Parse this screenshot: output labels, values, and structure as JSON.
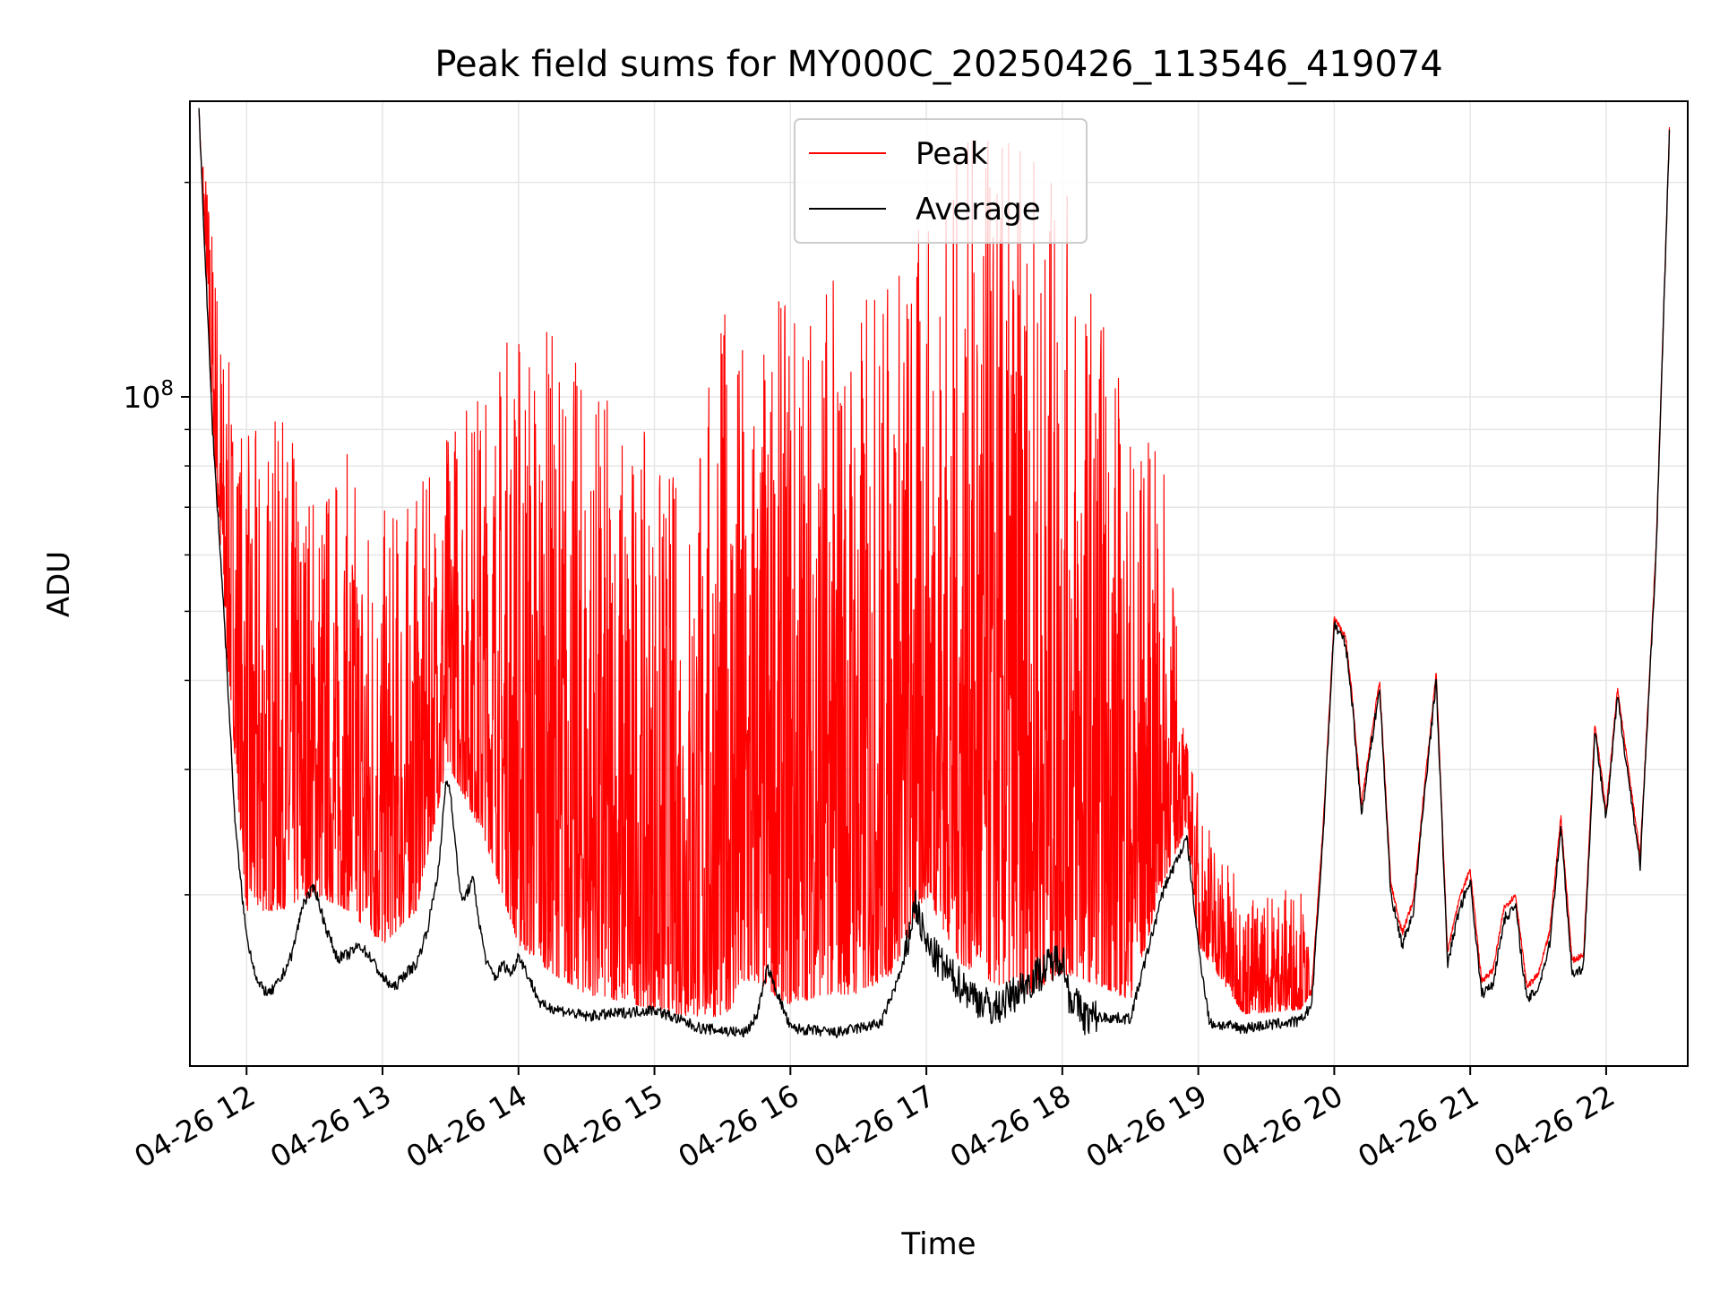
{
  "chart_data": {
    "type": "line",
    "title": "Peak field sums for MY000C_20250426_113546_419074",
    "xlabel": "Time",
    "ylabel": "ADU",
    "yscale": "log",
    "xlim": [
      "2025-04-26 11:35",
      "2025-04-26 22:36"
    ],
    "ylim": [
      11500000,
      260000000
    ],
    "x_tick_labels": [
      "04-26 12",
      "04-26 13",
      "04-26 14",
      "04-26 15",
      "04-26 16",
      "04-26 17",
      "04-26 18",
      "04-26 19",
      "04-26 20",
      "04-26 21",
      "04-26 22"
    ],
    "x_tick_times": [
      "2025-04-26 12:00",
      "2025-04-26 13:00",
      "2025-04-26 14:00",
      "2025-04-26 15:00",
      "2025-04-26 16:00",
      "2025-04-26 17:00",
      "2025-04-26 18:00",
      "2025-04-26 19:00",
      "2025-04-26 20:00",
      "2025-04-26 21:00",
      "2025-04-26 22:00"
    ],
    "y_tick_label": "10^8",
    "y_tick_value": 100000000,
    "grid": true,
    "legend_position": "top-center",
    "series": [
      {
        "name": "Average",
        "color": "#000000",
        "x": [
          "11:39",
          "11:45",
          "11:50",
          "11:55",
          "11:58",
          "12:00",
          "12:05",
          "12:10",
          "12:15",
          "12:20",
          "12:25",
          "12:30",
          "12:35",
          "12:40",
          "12:45",
          "12:50",
          "12:55",
          "13:00",
          "13:05",
          "13:10",
          "13:15",
          "13:20",
          "13:25",
          "13:28",
          "13:30",
          "13:33",
          "13:35",
          "13:40",
          "13:43",
          "13:46",
          "13:50",
          "13:53",
          "13:57",
          "14:00",
          "14:10",
          "14:30",
          "15:00",
          "15:20",
          "15:40",
          "15:45",
          "15:50",
          "16:00",
          "16:20",
          "16:40",
          "16:50",
          "16:55",
          "17:00",
          "17:10",
          "17:20",
          "17:30",
          "18:00",
          "18:03",
          "18:10",
          "18:30",
          "18:45",
          "18:55",
          "19:00",
          "19:05",
          "19:20",
          "19:45",
          "19:50",
          "19:55",
          "20:00",
          "20:05",
          "20:08",
          "20:12",
          "20:16",
          "20:20",
          "20:25",
          "20:30",
          "20:35",
          "20:40",
          "20:45",
          "20:50",
          "20:55",
          "21:00",
          "21:05",
          "21:10",
          "21:15",
          "21:20",
          "21:25",
          "21:30",
          "21:35",
          "21:40",
          "21:45",
          "21:50",
          "21:55",
          "22:00",
          "22:05",
          "22:15",
          "22:22",
          "22:28"
        ],
        "y": [
          250000000,
          90000000,
          50000000,
          25000000,
          20000000,
          17500000,
          15000000,
          14500000,
          15200000,
          16500000,
          19500000,
          20500000,
          18000000,
          16300000,
          16500000,
          17000000,
          16300000,
          15300000,
          14800000,
          15500000,
          16000000,
          18000000,
          22000000,
          29000000,
          28000000,
          22000000,
          19500000,
          21000000,
          18000000,
          16000000,
          15300000,
          16000000,
          15500000,
          16500000,
          14000000,
          13500000,
          13800000,
          13000000,
          12800000,
          13500000,
          15800000,
          13000000,
          12800000,
          13200000,
          16000000,
          19500000,
          17000000,
          15500000,
          14500000,
          13800000,
          16500000,
          14500000,
          13500000,
          13400000,
          20500000,
          24000000,
          17000000,
          13200000,
          13000000,
          13300000,
          14000000,
          24000000,
          48000000,
          45000000,
          37000000,
          26000000,
          32000000,
          39000000,
          20000000,
          17000000,
          19000000,
          28000000,
          40000000,
          16000000,
          19000000,
          21000000,
          14500000,
          15000000,
          18500000,
          19300000,
          14200000,
          14800000,
          17000000,
          25000000,
          15500000,
          15800000,
          34000000,
          25500000,
          38000000,
          22000000,
          60000000,
          240000000
        ]
      },
      {
        "name": "Peak",
        "color": "#ff0000",
        "x": [
          "11:39",
          "11:45",
          "11:50",
          "12:00",
          "12:15",
          "12:30",
          "12:45",
          "13:00",
          "13:15",
          "13:25",
          "13:30",
          "13:45",
          "14:00",
          "14:15",
          "14:30",
          "14:45",
          "15:00",
          "15:15",
          "15:30",
          "15:45",
          "16:00",
          "16:15",
          "16:30",
          "16:45",
          "17:00",
          "17:15",
          "17:30",
          "17:45",
          "18:00",
          "18:15",
          "18:30",
          "18:45",
          "18:55",
          "19:00",
          "19:20",
          "19:45",
          "19:50",
          "19:55",
          "20:00",
          "20:05",
          "20:08",
          "20:12",
          "20:16",
          "20:20",
          "20:25",
          "20:30",
          "20:35",
          "20:40",
          "20:45",
          "20:50",
          "20:55",
          "21:00",
          "21:05",
          "21:10",
          "21:15",
          "21:20",
          "21:25",
          "21:30",
          "21:35",
          "21:40",
          "21:45",
          "21:50",
          "21:55",
          "22:00",
          "22:05",
          "22:15",
          "22:22",
          "22:28"
        ],
        "y_low": [
          250000000,
          90000000,
          50000000,
          19000000,
          19000000,
          20000000,
          19000000,
          17000000,
          19000000,
          27000000,
          30000000,
          24000000,
          17000000,
          15500000,
          14500000,
          14200000,
          13800000,
          13500000,
          13500000,
          15000000,
          14000000,
          14500000,
          14500000,
          15500000,
          20000000,
          16000000,
          15000000,
          14500000,
          15500000,
          15000000,
          14200000,
          21000000,
          25000000,
          17000000,
          13600000,
          13800000,
          14500000,
          24500000,
          48500000,
          45500000,
          37500000,
          26500000,
          32500000,
          39500000,
          20500000,
          17500000,
          19500000,
          28500000,
          40500000,
          16500000,
          19500000,
          21500000,
          15000000,
          15500000,
          19000000,
          19800000,
          14700000,
          15300000,
          17500000,
          25500000,
          16000000,
          16300000,
          34500000,
          26000000,
          38500000,
          22500000,
          60500000,
          240000000
        ],
        "y_high": [
          250000000,
          180000000,
          120000000,
          90000000,
          95000000,
          80000000,
          85000000,
          70000000,
          75000000,
          80000000,
          100000000,
          110000000,
          140000000,
          130000000,
          110000000,
          100000000,
          85000000,
          80000000,
          140000000,
          120000000,
          150000000,
          160000000,
          140000000,
          170000000,
          180000000,
          230000000,
          240000000,
          230000000,
          200000000,
          150000000,
          100000000,
          80000000,
          33000000,
          28000000,
          20000000,
          21000000,
          15500000,
          25500000,
          49000000,
          46000000,
          38000000,
          27000000,
          33000000,
          40000000,
          21000000,
          18000000,
          20000000,
          29000000,
          41000000,
          17000000,
          20000000,
          22000000,
          15500000,
          16000000,
          19500000,
          20300000,
          15200000,
          15800000,
          18000000,
          26000000,
          16500000,
          16800000,
          35000000,
          26500000,
          39000000,
          23000000,
          61000000,
          240000000
        ]
      }
    ]
  }
}
